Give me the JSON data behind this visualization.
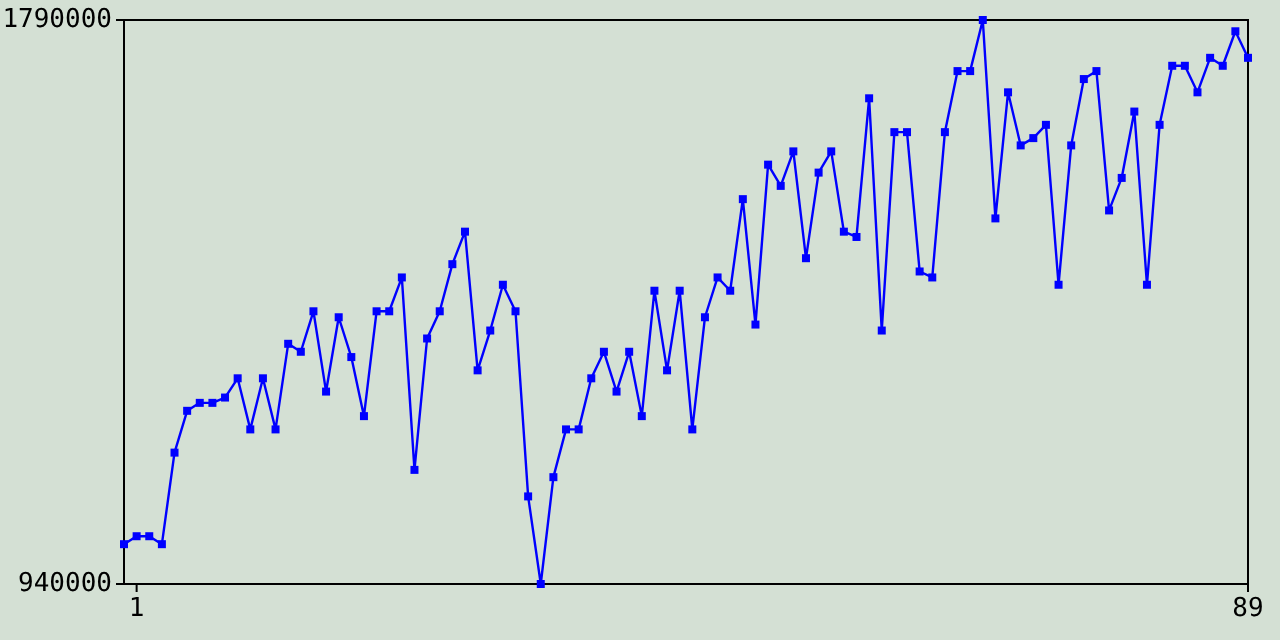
{
  "chart_data": {
    "type": "line",
    "x": [
      0,
      1,
      2,
      3,
      4,
      5,
      6,
      7,
      8,
      9,
      10,
      11,
      12,
      13,
      14,
      15,
      16,
      17,
      18,
      19,
      20,
      21,
      22,
      23,
      24,
      25,
      26,
      27,
      28,
      29,
      30,
      31,
      32,
      33,
      34,
      35,
      36,
      37,
      38,
      39,
      40,
      41,
      42,
      43,
      44,
      45,
      46,
      47,
      48,
      49,
      50,
      51,
      52,
      53,
      54,
      55,
      56,
      57,
      58,
      59,
      60,
      61,
      62,
      63,
      64,
      65,
      66,
      67,
      68,
      69,
      70,
      71,
      72,
      73,
      74,
      75,
      76,
      77,
      78,
      79,
      80,
      81,
      82,
      83,
      84,
      85,
      86,
      87,
      88,
      89
    ],
    "series": [
      {
        "color": "#0000ff",
        "values": [
          1000000,
          1012000,
          1012000,
          1000000,
          1138000,
          1201000,
          1213000,
          1213000,
          1221000,
          1250000,
          1173000,
          1250000,
          1173000,
          1302000,
          1290000,
          1351000,
          1230000,
          1342000,
          1282000,
          1193000,
          1351000,
          1351000,
          1402000,
          1112000,
          1310000,
          1351000,
          1422000,
          1471000,
          1262000,
          1322000,
          1391000,
          1351000,
          1072000,
          940000,
          1101000,
          1173000,
          1173000,
          1250000,
          1290000,
          1230000,
          1290000,
          1193000,
          1382000,
          1262000,
          1382000,
          1173000,
          1342000,
          1402000,
          1382000,
          1520000,
          1331000,
          1572000,
          1540000,
          1592000,
          1431000,
          1560000,
          1592000,
          1471000,
          1463000,
          1672000,
          1322000,
          1621000,
          1621000,
          1411000,
          1402000,
          1621000,
          1713000,
          1713000,
          1790000,
          1491000,
          1681000,
          1601000,
          1612000,
          1632000,
          1391000,
          1601000,
          1701000,
          1713000,
          1503000,
          1552000,
          1652000,
          1391000,
          1632000,
          1721000,
          1721000,
          1681000,
          1733000,
          1721000,
          1773000,
          1733000
        ]
      }
    ],
    "xlim": [
      0,
      89
    ],
    "xticks": [
      1,
      89
    ],
    "ylim": [
      940000,
      1790000
    ],
    "yticks": [
      940000,
      1790000
    ],
    "marker": "square",
    "grid": false
  }
}
